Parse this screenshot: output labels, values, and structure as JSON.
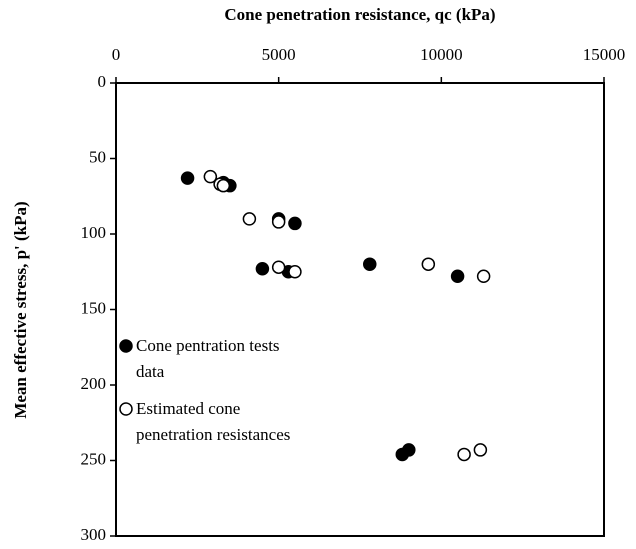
{
  "chart_data": {
    "type": "scatter",
    "x_label": "Cone penetration resistance, qc (kPa)",
    "y_label": "Mean effective stress, p' (kPa)",
    "xlim": [
      0,
      15000
    ],
    "xticks": [
      0,
      5000,
      10000,
      15000
    ],
    "ylim": [
      0,
      300
    ],
    "yticks": [
      0,
      50,
      100,
      150,
      200,
      250,
      300
    ],
    "y_inverted": true,
    "x_axis_position": "top",
    "legend": "left",
    "series": [
      {
        "name": "Cone pentration tests data",
        "color": "#000000",
        "filled": true,
        "x": [
          2200,
          3300,
          3500,
          5000,
          5500,
          4500,
          5300,
          7800,
          10500,
          8800,
          9000
        ],
        "values": [
          63,
          66,
          68,
          90,
          93,
          123,
          125,
          120,
          128,
          246,
          243
        ]
      },
      {
        "name": "Estimated cone penetration resistances",
        "color": "#000000",
        "filled": false,
        "x": [
          2900,
          3200,
          3300,
          4100,
          5000,
          5000,
          5500,
          9600,
          11300,
          10700,
          11200
        ],
        "values": [
          62,
          67,
          68,
          90,
          92,
          122,
          125,
          120,
          128,
          246,
          243
        ]
      }
    ]
  }
}
